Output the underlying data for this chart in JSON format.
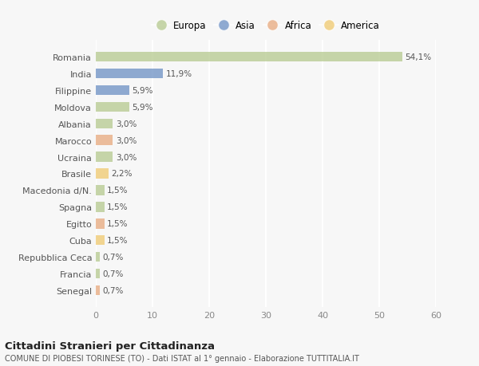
{
  "categories": [
    "Romania",
    "India",
    "Filippine",
    "Moldova",
    "Albania",
    "Marocco",
    "Ucraina",
    "Brasile",
    "Macedonia d/N.",
    "Spagna",
    "Egitto",
    "Cuba",
    "Repubblica Ceca",
    "Francia",
    "Senegal"
  ],
  "values": [
    54.1,
    11.9,
    5.9,
    5.9,
    3.0,
    3.0,
    3.0,
    2.2,
    1.5,
    1.5,
    1.5,
    1.5,
    0.7,
    0.7,
    0.7
  ],
  "labels": [
    "54,1%",
    "11,9%",
    "5,9%",
    "5,9%",
    "3,0%",
    "3,0%",
    "3,0%",
    "2,2%",
    "1,5%",
    "1,5%",
    "1,5%",
    "1,5%",
    "0,7%",
    "0,7%",
    "0,7%"
  ],
  "bar_colors": [
    "#b5c98e",
    "#6b8fc4",
    "#6b8fc4",
    "#b5c98e",
    "#b5c98e",
    "#e8a87c",
    "#b5c98e",
    "#f0c96e",
    "#b5c98e",
    "#b5c98e",
    "#e8a87c",
    "#f0c96e",
    "#b5c98e",
    "#b5c98e",
    "#e8a87c"
  ],
  "legend_labels": [
    "Europa",
    "Asia",
    "Africa",
    "America"
  ],
  "legend_colors": [
    "#b5c98e",
    "#6b8fc4",
    "#e8a87c",
    "#f0c96e"
  ],
  "title": "Cittadini Stranieri per Cittadinanza",
  "subtitle": "COMUNE DI PIOBESI TORINESE (TO) - Dati ISTAT al 1° gennaio - Elaborazione TUTTITALIA.IT",
  "xlim": [
    0,
    60
  ],
  "xticks": [
    0,
    10,
    20,
    30,
    40,
    50,
    60
  ],
  "background_color": "#f7f7f7",
  "grid_color": "#ffffff",
  "bar_alpha": 0.75
}
